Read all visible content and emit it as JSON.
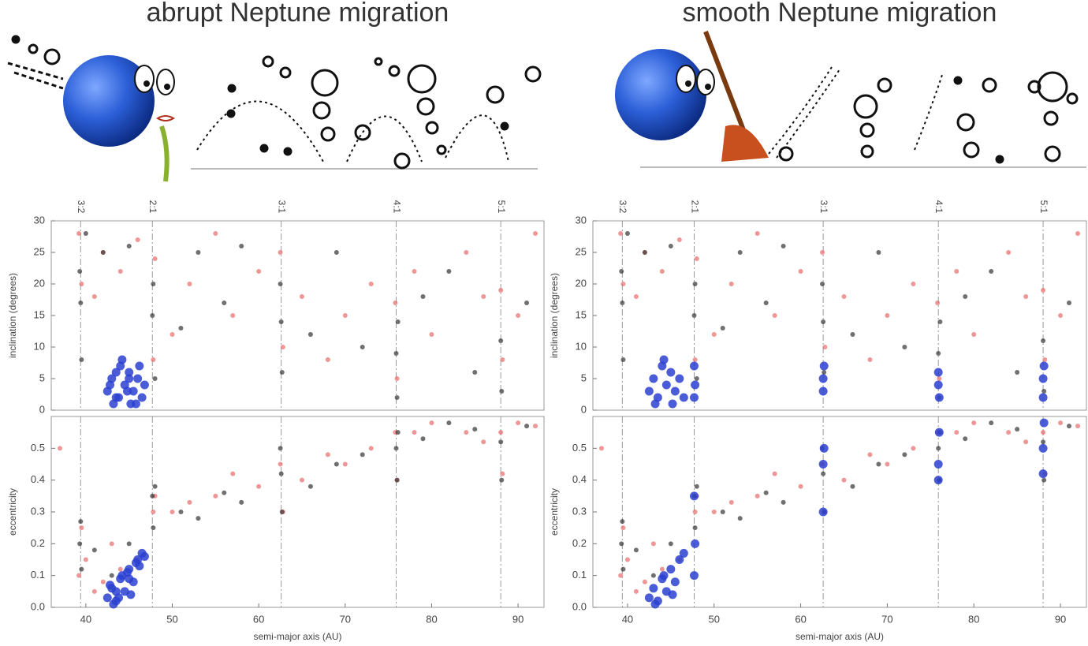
{
  "chart_data": [
    {
      "type": "scatter",
      "title": "abrupt Neptune migration",
      "ylabel": "inclination (degrees)",
      "xlim": [
        36,
        93
      ],
      "ylim": [
        0,
        30
      ],
      "yticks": [
        0,
        5,
        10,
        15,
        20,
        25,
        30
      ],
      "resonances": [
        {
          "value": 39.4,
          "label": "3:2"
        },
        {
          "value": 47.7,
          "label": "2:1"
        },
        {
          "value": 62.6,
          "label": "3:1"
        },
        {
          "value": 75.9,
          "label": "4:1"
        },
        {
          "value": 88.0,
          "label": "5:1"
        }
      ],
      "series": [
        {
          "color": "#e86a6a",
          "x": [
            39.2,
            39.5,
            41,
            42,
            44,
            46,
            47.8,
            48,
            50,
            52,
            55,
            57,
            60,
            62.5,
            62.8,
            65,
            68,
            70,
            73,
            75.8,
            76,
            78,
            80,
            84,
            86,
            88,
            88.2,
            90,
            92
          ],
          "values": [
            28,
            20,
            18,
            25,
            22,
            27,
            8,
            24,
            12,
            20,
            28,
            15,
            22,
            25,
            10,
            18,
            8,
            15,
            20,
            17,
            5,
            22,
            12,
            25,
            18,
            19,
            8,
            15,
            28
          ]
        },
        {
          "color": "#333333",
          "x": [
            39.3,
            39.4,
            39.5,
            40,
            42,
            45,
            47.7,
            47.8,
            48,
            51,
            53,
            56,
            58,
            62.6,
            62.7,
            62.5,
            66,
            69,
            72,
            75.9,
            76,
            76.1,
            79,
            82,
            85,
            88,
            88.1,
            91
          ],
          "values": [
            22,
            17,
            8,
            28,
            25,
            26,
            15,
            20,
            5,
            13,
            25,
            17,
            26,
            14,
            6,
            20,
            12,
            25,
            10,
            9,
            2,
            14,
            18,
            22,
            6,
            11,
            3,
            17
          ]
        },
        {
          "color": "#2a3fd0",
          "x": [
            42.5,
            43,
            43.5,
            44,
            44.5,
            45,
            45.5,
            46,
            46.5,
            43.2,
            44.2,
            45.2,
            46.2,
            42.8,
            43.8,
            44.8,
            45.8,
            46.8,
            43.5,
            45
          ],
          "values": [
            3,
            5,
            2,
            7,
            4,
            6,
            3,
            5,
            2,
            1,
            8,
            1,
            7,
            4,
            2,
            3,
            1,
            4,
            6,
            5
          ]
        }
      ]
    },
    {
      "type": "scatter",
      "ylabel": "eccentricity",
      "xlabel": "semi-major axis (AU)",
      "xlim": [
        36,
        93
      ],
      "xticks": [
        40,
        50,
        60,
        70,
        80,
        90
      ],
      "ylim": [
        0,
        0.6
      ],
      "yticks": [
        {
          "value": 0,
          "label": "0.0"
        },
        0.1,
        0.2,
        0.3,
        0.4,
        0.5
      ],
      "vlines": [
        39.4,
        47.7,
        62.6,
        75.9,
        88.0
      ],
      "series": [
        {
          "color": "#e86a6a",
          "x": [
            37,
            39.2,
            39.5,
            40,
            41,
            42,
            43,
            44,
            46,
            47.8,
            48,
            50,
            52,
            55,
            57,
            60,
            62.5,
            62.8,
            65,
            68,
            70,
            73,
            75.8,
            76,
            78,
            80,
            84,
            86,
            88,
            88.2,
            90,
            92
          ],
          "values": [
            0.5,
            0.1,
            0.25,
            0.15,
            0.05,
            0.08,
            0.2,
            0.12,
            0.15,
            0.3,
            0.35,
            0.3,
            0.33,
            0.35,
            0.42,
            0.38,
            0.45,
            0.3,
            0.4,
            0.48,
            0.45,
            0.5,
            0.55,
            0.4,
            0.55,
            0.58,
            0.55,
            0.52,
            0.55,
            0.42,
            0.58,
            0.57
          ]
        },
        {
          "color": "#333333",
          "x": [
            39.3,
            39.4,
            39.5,
            41,
            43,
            45,
            47.7,
            47.8,
            48,
            51,
            53,
            56,
            58,
            62.6,
            62.7,
            62.5,
            66,
            69,
            72,
            75.9,
            76,
            76.1,
            79,
            82,
            85,
            88,
            88.1,
            91
          ],
          "values": [
            0.2,
            0.27,
            0.12,
            0.18,
            0.1,
            0.2,
            0.35,
            0.25,
            0.38,
            0.3,
            0.28,
            0.36,
            0.33,
            0.42,
            0.3,
            0.5,
            0.38,
            0.45,
            0.48,
            0.5,
            0.4,
            0.55,
            0.53,
            0.58,
            0.56,
            0.52,
            0.4,
            0.57
          ]
        },
        {
          "color": "#2a3fd0",
          "x": [
            42.5,
            43,
            43.5,
            44,
            44.5,
            45,
            45.5,
            46,
            46.5,
            43.2,
            44.2,
            45.2,
            46.2,
            42.8,
            43.8,
            44.8,
            45.8,
            46.8,
            43.5,
            45
          ],
          "values": [
            0.03,
            0.06,
            0.02,
            0.09,
            0.05,
            0.12,
            0.08,
            0.15,
            0.17,
            0.01,
            0.1,
            0.04,
            0.13,
            0.07,
            0.03,
            0.11,
            0.14,
            0.16,
            0.05,
            0.09
          ]
        }
      ]
    },
    {
      "type": "scatter",
      "title": "smooth Neptune migration",
      "ylabel": "inclination (degrees)",
      "xlim": [
        36,
        93
      ],
      "ylim": [
        0,
        30
      ],
      "yticks": [
        0,
        5,
        10,
        15,
        20,
        25,
        30
      ],
      "resonances": [
        {
          "value": 39.4,
          "label": "3:2"
        },
        {
          "value": 47.7,
          "label": "2:1"
        },
        {
          "value": 62.6,
          "label": "3:1"
        },
        {
          "value": 75.9,
          "label": "4:1"
        },
        {
          "value": 88.0,
          "label": "5:1"
        }
      ],
      "series": [
        {
          "color": "#e86a6a",
          "x": [
            39.2,
            39.5,
            41,
            42,
            44,
            46,
            47.8,
            48,
            50,
            52,
            55,
            57,
            60,
            62.5,
            62.8,
            65,
            68,
            70,
            73,
            75.8,
            76,
            78,
            80,
            84,
            86,
            88,
            88.2,
            90,
            92
          ],
          "values": [
            28,
            20,
            18,
            25,
            22,
            27,
            8,
            24,
            12,
            20,
            28,
            15,
            22,
            25,
            10,
            18,
            8,
            15,
            20,
            17,
            5,
            22,
            12,
            25,
            18,
            19,
            8,
            15,
            28
          ]
        },
        {
          "color": "#333333",
          "x": [
            39.3,
            39.4,
            39.5,
            40,
            42,
            45,
            47.7,
            47.8,
            48,
            51,
            53,
            56,
            58,
            62.6,
            62.7,
            62.5,
            66,
            69,
            72,
            75.9,
            76,
            76.1,
            79,
            82,
            85,
            88,
            88.1,
            91
          ],
          "values": [
            22,
            17,
            8,
            28,
            25,
            26,
            15,
            20,
            5,
            13,
            25,
            17,
            26,
            14,
            6,
            20,
            12,
            25,
            10,
            9,
            2,
            14,
            18,
            22,
            6,
            11,
            3,
            17
          ]
        },
        {
          "color": "#2a3fd0",
          "x": [
            42.5,
            43,
            43.5,
            44,
            44.5,
            45,
            45.5,
            46,
            46.5,
            43.2,
            44.2,
            45.2,
            47.7,
            47.8,
            47.7,
            62.6,
            62.6,
            62.7,
            75.9,
            76,
            75.9,
            88,
            88,
            88.1
          ],
          "values": [
            3,
            5,
            2,
            7,
            4,
            6,
            3,
            5,
            2,
            1,
            8,
            1,
            7,
            4,
            2,
            5,
            3,
            7,
            6,
            2,
            4,
            5,
            2,
            7
          ]
        }
      ]
    },
    {
      "type": "scatter",
      "ylabel": "eccentricity",
      "xlabel": "semi-major axis (AU)",
      "xlim": [
        36,
        93
      ],
      "xticks": [
        40,
        50,
        60,
        70,
        80,
        90
      ],
      "ylim": [
        0,
        0.6
      ],
      "yticks": [
        {
          "value": 0,
          "label": "0.0"
        },
        0.1,
        0.2,
        0.3,
        0.4,
        0.5
      ],
      "vlines": [
        39.4,
        47.7,
        62.6,
        75.9,
        88.0
      ],
      "series": [
        {
          "color": "#e86a6a",
          "x": [
            37,
            39.2,
            39.5,
            40,
            41,
            42,
            43,
            44,
            46,
            47.8,
            48,
            50,
            52,
            55,
            57,
            60,
            62.5,
            62.8,
            65,
            68,
            70,
            73,
            75.8,
            76,
            78,
            80,
            84,
            86,
            88,
            88.2,
            90,
            92
          ],
          "values": [
            0.5,
            0.1,
            0.25,
            0.15,
            0.05,
            0.08,
            0.2,
            0.12,
            0.15,
            0.3,
            0.35,
            0.3,
            0.33,
            0.35,
            0.42,
            0.38,
            0.45,
            0.3,
            0.4,
            0.48,
            0.45,
            0.5,
            0.55,
            0.4,
            0.55,
            0.58,
            0.55,
            0.52,
            0.55,
            0.42,
            0.58,
            0.57
          ]
        },
        {
          "color": "#333333",
          "x": [
            39.3,
            39.4,
            39.5,
            41,
            43,
            45,
            47.7,
            47.8,
            48,
            51,
            53,
            56,
            58,
            62.6,
            62.7,
            62.5,
            66,
            69,
            72,
            75.9,
            76,
            76.1,
            79,
            82,
            85,
            88,
            88.1,
            91
          ],
          "values": [
            0.2,
            0.27,
            0.12,
            0.18,
            0.1,
            0.2,
            0.35,
            0.25,
            0.38,
            0.3,
            0.28,
            0.36,
            0.33,
            0.42,
            0.3,
            0.5,
            0.38,
            0.45,
            0.48,
            0.5,
            0.4,
            0.55,
            0.53,
            0.58,
            0.56,
            0.52,
            0.4,
            0.57
          ]
        },
        {
          "color": "#2a3fd0",
          "x": [
            42.5,
            43,
            43.5,
            44,
            44.5,
            45,
            45.5,
            46,
            46.5,
            43.2,
            44.2,
            45.2,
            47.7,
            47.8,
            47.7,
            62.6,
            62.6,
            62.7,
            75.9,
            76,
            75.9,
            88,
            88,
            88.1
          ],
          "values": [
            0.03,
            0.06,
            0.02,
            0.09,
            0.05,
            0.12,
            0.08,
            0.15,
            0.17,
            0.01,
            0.1,
            0.04,
            0.35,
            0.2,
            0.1,
            0.45,
            0.3,
            0.5,
            0.45,
            0.55,
            0.4,
            0.5,
            0.42,
            0.58
          ]
        }
      ]
    }
  ]
}
